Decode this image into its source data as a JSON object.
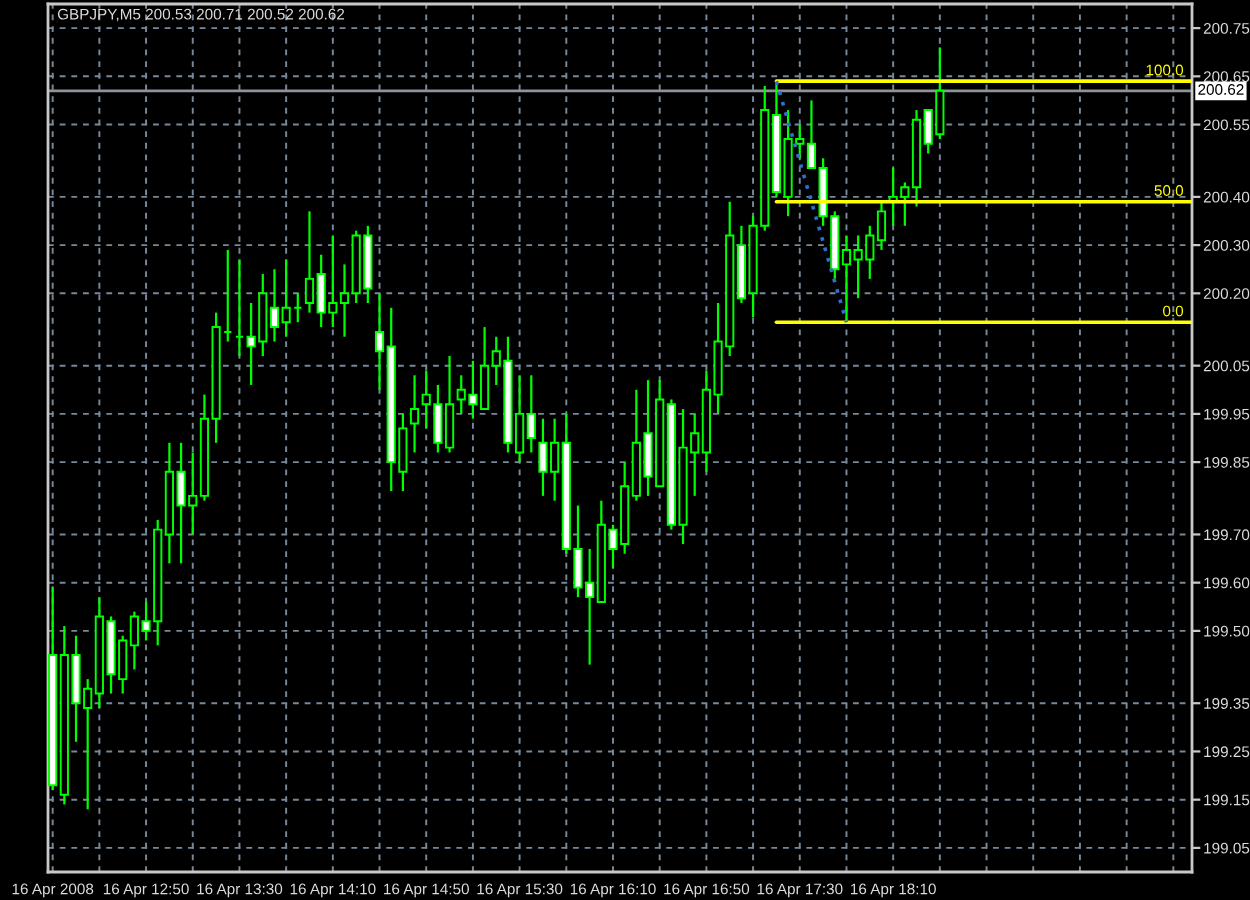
{
  "chart_data": {
    "type": "candlestick",
    "title": "GBPJPY,M5 200.53 200.71 200.52 200.62",
    "series": [
      {
        "color": "#00ff00",
        "x": [
          "2008-04-16T12:10",
          "2008-04-16T12:15",
          "2008-04-16T12:20",
          "2008-04-16T12:25",
          "2008-04-16T12:30",
          "2008-04-16T12:35",
          "2008-04-16T12:40",
          "2008-04-16T12:45",
          "2008-04-16T12:50",
          "2008-04-16T12:55",
          "2008-04-16T13:00",
          "2008-04-16T13:05",
          "2008-04-16T13:10",
          "2008-04-16T13:15",
          "2008-04-16T13:20",
          "2008-04-16T13:25",
          "2008-04-16T13:30",
          "2008-04-16T13:35",
          "2008-04-16T13:40",
          "2008-04-16T13:45",
          "2008-04-16T13:50",
          "2008-04-16T13:55",
          "2008-04-16T14:00",
          "2008-04-16T14:05",
          "2008-04-16T14:10",
          "2008-04-16T14:15",
          "2008-04-16T14:20",
          "2008-04-16T14:25",
          "2008-04-16T14:30",
          "2008-04-16T14:35",
          "2008-04-16T14:40",
          "2008-04-16T14:45",
          "2008-04-16T14:50",
          "2008-04-16T14:55",
          "2008-04-16T15:00",
          "2008-04-16T15:05",
          "2008-04-16T15:10",
          "2008-04-16T15:15",
          "2008-04-16T15:20",
          "2008-04-16T15:25",
          "2008-04-16T15:30",
          "2008-04-16T15:35",
          "2008-04-16T15:40",
          "2008-04-16T15:45",
          "2008-04-16T15:50",
          "2008-04-16T15:55",
          "2008-04-16T16:00",
          "2008-04-16T16:05",
          "2008-04-16T16:10",
          "2008-04-16T16:15",
          "2008-04-16T16:20",
          "2008-04-16T16:25",
          "2008-04-16T16:30",
          "2008-04-16T16:35",
          "2008-04-16T16:40",
          "2008-04-16T16:45",
          "2008-04-16T16:50",
          "2008-04-16T16:55",
          "2008-04-16T17:00",
          "2008-04-16T17:05",
          "2008-04-16T17:10",
          "2008-04-16T17:15",
          "2008-04-16T17:20",
          "2008-04-16T17:25",
          "2008-04-16T17:30",
          "2008-04-16T17:35",
          "2008-04-16T17:40",
          "2008-04-16T17:45",
          "2008-04-16T17:50",
          "2008-04-16T17:55",
          "2008-04-16T18:00",
          "2008-04-16T18:05",
          "2008-04-16T18:10",
          "2008-04-16T18:15",
          "2008-04-16T18:20",
          "2008-04-16T18:25",
          "2008-04-16T18:30"
        ],
        "ohlc": [
          [
            199.45,
            199.59,
            199.17,
            199.18
          ],
          [
            199.16,
            199.51,
            199.14,
            199.45
          ],
          [
            199.45,
            199.49,
            199.27,
            199.35
          ],
          [
            199.34,
            199.4,
            199.13,
            199.38
          ],
          [
            199.37,
            199.57,
            199.34,
            199.53
          ],
          [
            199.52,
            199.53,
            199.37,
            199.41
          ],
          [
            199.4,
            199.49,
            199.37,
            199.48
          ],
          [
            199.47,
            199.54,
            199.42,
            199.53
          ],
          [
            199.52,
            199.56,
            199.48,
            199.5
          ],
          [
            199.52,
            199.73,
            199.47,
            199.71
          ],
          [
            199.7,
            199.89,
            199.64,
            199.83
          ],
          [
            199.83,
            199.89,
            199.64,
            199.76
          ],
          [
            199.76,
            199.87,
            199.7,
            199.78
          ],
          [
            199.78,
            199.99,
            199.77,
            199.94
          ],
          [
            199.94,
            200.16,
            199.89,
            200.13
          ],
          [
            200.12,
            200.29,
            200.1,
            200.12
          ],
          [
            200.11,
            200.27,
            200.07,
            200.11
          ],
          [
            200.11,
            200.18,
            200.01,
            200.09
          ],
          [
            200.1,
            200.24,
            200.07,
            200.2
          ],
          [
            200.17,
            200.25,
            200.1,
            200.13
          ],
          [
            200.14,
            200.27,
            200.11,
            200.17
          ],
          [
            200.17,
            200.2,
            200.14,
            200.17
          ],
          [
            200.18,
            200.37,
            200.16,
            200.23
          ],
          [
            200.24,
            200.28,
            200.13,
            200.16
          ],
          [
            200.16,
            200.32,
            200.13,
            200.18
          ],
          [
            200.18,
            200.26,
            200.11,
            200.2
          ],
          [
            200.2,
            200.33,
            200.18,
            200.32
          ],
          [
            200.32,
            200.34,
            200.18,
            200.21
          ],
          [
            200.12,
            200.2,
            200.0,
            200.08
          ],
          [
            200.09,
            200.17,
            199.79,
            199.85
          ],
          [
            199.83,
            199.95,
            199.79,
            199.92
          ],
          [
            199.93,
            200.03,
            199.87,
            199.96
          ],
          [
            199.97,
            200.04,
            199.92,
            199.99
          ],
          [
            199.97,
            200.01,
            199.87,
            199.89
          ],
          [
            199.88,
            200.07,
            199.87,
            199.97
          ],
          [
            199.98,
            200.03,
            199.95,
            200.0
          ],
          [
            199.99,
            200.06,
            199.94,
            199.97
          ],
          [
            199.96,
            200.13,
            199.96,
            200.05
          ],
          [
            200.05,
            200.11,
            200.01,
            200.08
          ],
          [
            200.06,
            200.11,
            199.87,
            199.89
          ],
          [
            199.87,
            200.03,
            199.85,
            199.95
          ],
          [
            199.95,
            200.03,
            199.87,
            199.9
          ],
          [
            199.89,
            199.94,
            199.78,
            199.83
          ],
          [
            199.83,
            199.94,
            199.77,
            199.89
          ],
          [
            199.89,
            199.95,
            199.66,
            199.67
          ],
          [
            199.67,
            199.76,
            199.57,
            199.59
          ],
          [
            199.6,
            199.67,
            199.43,
            199.57
          ],
          [
            199.56,
            199.77,
            199.56,
            199.72
          ],
          [
            199.71,
            199.72,
            199.63,
            199.67
          ],
          [
            199.68,
            199.85,
            199.66,
            199.8
          ],
          [
            199.78,
            200.0,
            199.77,
            199.89
          ],
          [
            199.91,
            200.02,
            199.78,
            199.82
          ],
          [
            199.8,
            200.02,
            199.8,
            199.98
          ],
          [
            199.97,
            199.98,
            199.71,
            199.72
          ],
          [
            199.72,
            199.96,
            199.68,
            199.88
          ],
          [
            199.87,
            199.95,
            199.78,
            199.91
          ],
          [
            199.87,
            200.04,
            199.83,
            200.0
          ],
          [
            199.99,
            200.18,
            199.95,
            200.1
          ],
          [
            200.09,
            200.39,
            200.07,
            200.32
          ],
          [
            200.3,
            200.34,
            200.18,
            200.19
          ],
          [
            200.2,
            200.36,
            200.15,
            200.34
          ],
          [
            200.34,
            200.63,
            200.33,
            200.58
          ],
          [
            200.57,
            200.64,
            200.4,
            200.41
          ],
          [
            200.4,
            200.58,
            200.36,
            200.52
          ],
          [
            200.51,
            200.55,
            200.48,
            200.52
          ],
          [
            200.51,
            200.6,
            200.46,
            200.46
          ],
          [
            200.46,
            200.48,
            200.34,
            200.36
          ],
          [
            200.36,
            200.37,
            200.23,
            200.25
          ],
          [
            200.26,
            200.32,
            200.14,
            200.29
          ],
          [
            200.27,
            200.32,
            200.19,
            200.29
          ],
          [
            200.27,
            200.34,
            200.23,
            200.32
          ],
          [
            200.31,
            200.39,
            200.29,
            200.37
          ],
          [
            200.39,
            200.46,
            200.34,
            200.4
          ],
          [
            200.4,
            200.43,
            200.34,
            200.42
          ],
          [
            200.42,
            200.58,
            200.38,
            200.56
          ],
          [
            200.58,
            200.58,
            200.49,
            200.51
          ],
          [
            200.53,
            200.71,
            200.52,
            200.62
          ]
        ],
        "colors": [
          "#ffffff",
          "#000000",
          "#ffffff",
          "#000000",
          "#000000",
          "#ffffff",
          "#000000",
          "#000000",
          "#ffffff",
          "#000000",
          "#000000",
          "#ffffff",
          "#000000",
          "#000000",
          "#000000",
          "#00ff00",
          "#00ff00",
          "#ffffff",
          "#000000",
          "#ffffff",
          "#000000",
          "#00ff00",
          "#000000",
          "#ffffff",
          "#000000",
          "#000000",
          "#000000",
          "#ffffff",
          "#ffffff",
          "#ffffff",
          "#000000",
          "#000000",
          "#000000",
          "#ffffff",
          "#000000",
          "#000000",
          "#ffffff",
          "#000000",
          "#000000",
          "#ffffff",
          "#000000",
          "#ffffff",
          "#ffffff",
          "#000000",
          "#ffffff",
          "#ffffff",
          "#ffffff",
          "#000000",
          "#ffffff",
          "#000000",
          "#000000",
          "#ffffff",
          "#000000",
          "#ffffff",
          "#000000",
          "#000000",
          "#000000",
          "#000000",
          "#000000",
          "#ffffff",
          "#000000",
          "#000000",
          "#ffffff",
          "#000000",
          "#000000",
          "#ffffff",
          "#ffffff",
          "#ffffff",
          "#000000",
          "#000000",
          "#000000",
          "#000000",
          "#000000",
          "#000000",
          "#000000",
          "#ffffff",
          "#000000"
        ]
      },
      {
        "type": "line",
        "name": "100.0",
        "color": "#ffff00",
        "x": [
          "2008-04-16T17:20",
          "2008-04-16T20:18"
        ],
        "values": [
          200.64,
          200.64
        ]
      },
      {
        "type": "line",
        "name": "50.0",
        "color": "#ffff00",
        "x": [
          "2008-04-16T17:20",
          "2008-04-16T20:18"
        ],
        "values": [
          200.39,
          200.39
        ]
      },
      {
        "type": "line",
        "name": "0.0",
        "color": "#ffff00",
        "x": [
          "2008-04-16T17:20",
          "2008-04-16T20:18"
        ],
        "values": [
          200.14,
          200.14
        ]
      },
      {
        "type": "line",
        "color": "#2f6fd0",
        "line_style": "dotted",
        "x": [
          "2008-04-16T17:20",
          "2008-04-16T17:50"
        ],
        "values": [
          200.64,
          200.14
        ]
      }
    ],
    "ref_lines": [
      {
        "axis": "y",
        "value": 200.62,
        "label": "200.62",
        "color": "#8c939a"
      }
    ],
    "xlim": [
      "2008-04-16T12:08",
      "2008-04-16T20:18"
    ],
    "xticks": [
      {
        "value": "2008-04-16T12:10",
        "label": "16 Apr 2008"
      },
      {
        "value": "2008-04-16T12:30",
        "label": null
      },
      {
        "value": "2008-04-16T12:50",
        "label": "16 Apr 12:50"
      },
      {
        "value": "2008-04-16T13:10",
        "label": null
      },
      {
        "value": "2008-04-16T13:30",
        "label": "16 Apr 13:30"
      },
      {
        "value": "2008-04-16T13:50",
        "label": null
      },
      {
        "value": "2008-04-16T14:10",
        "label": "16 Apr 14:10"
      },
      {
        "value": "2008-04-16T14:30",
        "label": null
      },
      {
        "value": "2008-04-16T14:50",
        "label": "16 Apr 14:50"
      },
      {
        "value": "2008-04-16T15:10",
        "label": null
      },
      {
        "value": "2008-04-16T15:30",
        "label": "16 Apr 15:30"
      },
      {
        "value": "2008-04-16T15:50",
        "label": null
      },
      {
        "value": "2008-04-16T16:10",
        "label": "16 Apr 16:10"
      },
      {
        "value": "2008-04-16T16:30",
        "label": null
      },
      {
        "value": "2008-04-16T16:50",
        "label": "16 Apr 16:50"
      },
      {
        "value": "2008-04-16T17:10",
        "label": null
      },
      {
        "value": "2008-04-16T17:30",
        "label": "16 Apr 17:30"
      },
      {
        "value": "2008-04-16T17:50",
        "label": null
      },
      {
        "value": "2008-04-16T18:10",
        "label": "16 Apr 18:10"
      },
      {
        "value": "2008-04-16T18:30",
        "label": null
      },
      {
        "value": "2008-04-16T18:50",
        "label": null
      },
      {
        "value": "2008-04-16T19:10",
        "label": null
      },
      {
        "value": "2008-04-16T19:30",
        "label": null
      },
      {
        "value": "2008-04-16T19:50",
        "label": null
      },
      {
        "value": "2008-04-16T20:10",
        "label": null
      }
    ],
    "ylim": [
      199.0,
      200.8
    ],
    "yticks": [
      200.75,
      200.65,
      200.55,
      {
        "value": 200.4,
        "label": "200.40"
      },
      {
        "value": 200.3,
        "label": "200.30"
      },
      {
        "value": 200.2,
        "label": "200.20"
      },
      200.05,
      199.95,
      199.85,
      {
        "value": 199.7,
        "label": "199.70"
      },
      {
        "value": 199.6,
        "label": "199.60"
      },
      {
        "value": 199.5,
        "label": "199.50"
      },
      199.35,
      199.25,
      199.15,
      199.05
    ],
    "grid": true
  }
}
